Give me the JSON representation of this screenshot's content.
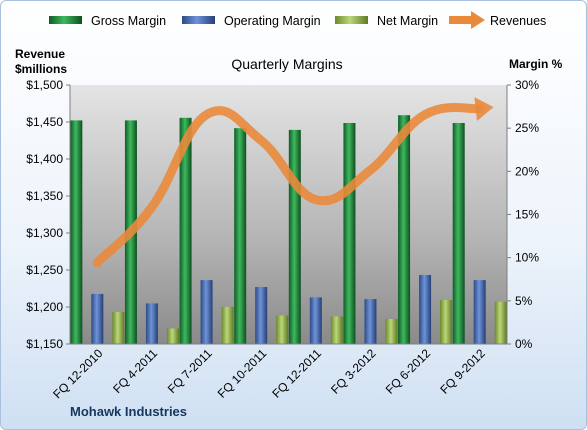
{
  "chart_data": {
    "type": "bar",
    "title": "Quarterly Margins",
    "company": "Mohawk Industries",
    "left_axis_label": [
      "Revenue",
      "$millions"
    ],
    "right_axis_label": "Margin %",
    "left_axis": {
      "ylim": [
        1150,
        1500
      ],
      "ticks": [
        1150,
        1200,
        1250,
        1300,
        1350,
        1400,
        1450,
        1500
      ],
      "tick_labels": [
        "$1,150",
        "$1,200",
        "$1,250",
        "$1,300",
        "$1,350",
        "$1,400",
        "$1,450",
        "$1,500"
      ]
    },
    "right_axis": {
      "ylim": [
        0,
        30
      ],
      "ticks": [
        0,
        5,
        10,
        15,
        20,
        25,
        30
      ],
      "tick_labels": [
        "0%",
        "5%",
        "10%",
        "15%",
        "20%",
        "25%",
        "30%"
      ]
    },
    "categories": [
      "FQ 12-2010",
      "FQ 4-2011",
      "FQ 7-2011",
      "FQ 10-2011",
      "FQ 12-2011",
      "FQ 3-2012",
      "FQ 6-2012",
      "FQ 9-2012"
    ],
    "series": [
      {
        "name": "Gross Margin",
        "axis": "right",
        "kind": "bar",
        "color": "#1e8a3c",
        "values": [
          25.9,
          25.9,
          26.2,
          25.0,
          24.8,
          25.6,
          26.5,
          25.6
        ]
      },
      {
        "name": "Operating Margin",
        "axis": "right",
        "kind": "bar",
        "color": "#4a6fb5",
        "values": [
          5.8,
          4.7,
          7.4,
          6.6,
          5.4,
          5.2,
          8.0,
          7.4
        ]
      },
      {
        "name": "Net Margin",
        "axis": "right",
        "kind": "bar",
        "color": "#9bbb59",
        "values": [
          3.7,
          1.8,
          4.3,
          3.3,
          3.2,
          2.9,
          5.1,
          4.9
        ]
      },
      {
        "name": "Revenues",
        "axis": "left",
        "kind": "line",
        "color": "#e98a3b",
        "values": [
          1260,
          1335,
          1460,
          1425,
          1345,
          1385,
          1460,
          1468
        ]
      }
    ],
    "legend_position": "top",
    "grid": false
  }
}
